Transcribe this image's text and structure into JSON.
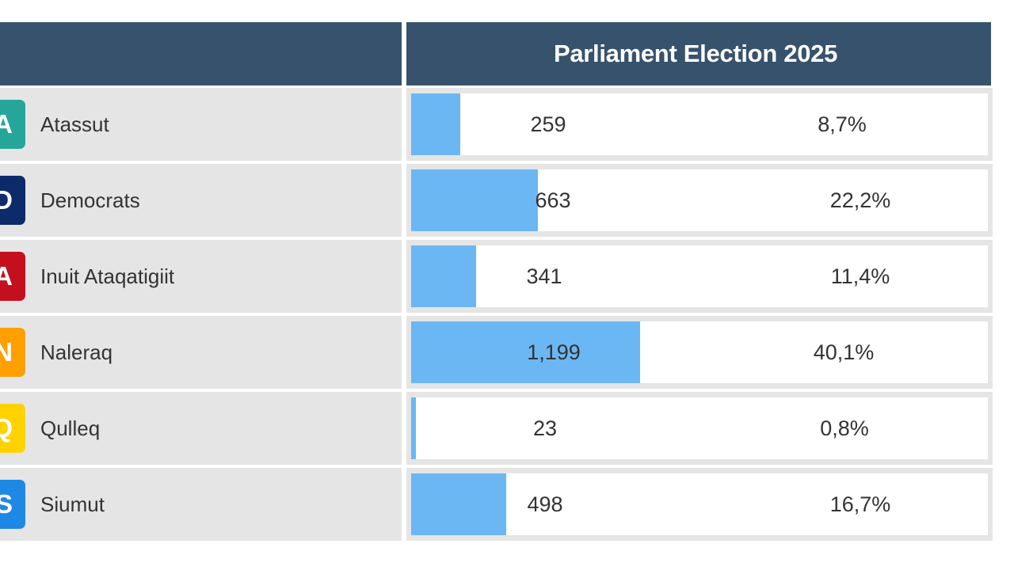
{
  "chart_data": {
    "type": "bar",
    "title": "Parliament Election 2025",
    "categories": [
      "Atassut",
      "Democrats",
      "Inuit Ataqatigiit",
      "Naleraq",
      "Qulleq",
      "Siumut"
    ],
    "values": [
      259,
      663,
      341,
      1199,
      23,
      498
    ],
    "value_labels": [
      "259",
      "663",
      "341",
      "1,199",
      "23",
      "498"
    ],
    "percent_labels": [
      "8,7%",
      "22,2%",
      "11,4%",
      "40,1%",
      "0,8%",
      "16,7%"
    ],
    "xlim": [
      0,
      3025
    ]
  },
  "parties": [
    {
      "letter": "A",
      "name": "Atassut",
      "color": "#26a69a"
    },
    {
      "letter": "D",
      "name": "Democrats",
      "color": "#0d2a6b"
    },
    {
      "letter": "A",
      "name": "Inuit Ataqatigiit",
      "color": "#c4101e"
    },
    {
      "letter": "N",
      "name": "Naleraq",
      "color": "#ffa000"
    },
    {
      "letter": "Q",
      "name": "Qulleq",
      "color": "#ffd200"
    },
    {
      "letter": "S",
      "name": "Siumut",
      "color": "#1e88e5"
    }
  ],
  "colors": {
    "header": "#37526c",
    "bar": "#6bb7f4",
    "cell_background": "#e5e5e5"
  }
}
